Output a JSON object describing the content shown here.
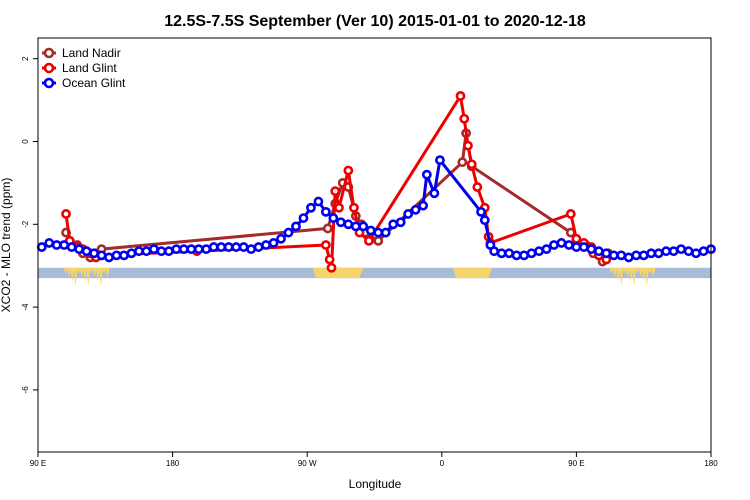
{
  "chart_data": {
    "type": "line",
    "title": "12.5S-7.5S September (Ver 10)   2015-01-01 to 2020-12-18",
    "xlabel": "Longitude",
    "ylabel": "XCO2 - MLO trend (ppm)",
    "xlim": [
      90,
      450
    ],
    "ylim": [
      -7.5,
      2.5
    ],
    "x_ticks": [
      {
        "value": 90,
        "label": "90 E"
      },
      {
        "value": 162,
        "label": "180"
      },
      {
        "value": 234,
        "label": "90 W"
      },
      {
        "value": 306,
        "label": "0"
      },
      {
        "value": 378,
        "label": "90 E"
      },
      {
        "value": 450,
        "label": "180"
      }
    ],
    "y_ticks": [
      2,
      0,
      -2,
      -4,
      -6
    ],
    "grid": false,
    "legend_position": "top-left",
    "land_band": {
      "y_range": [
        -3.3,
        -3.05
      ],
      "base_color": "#a8bcd8",
      "land_color": "#f5d56b",
      "land_segments": [
        [
          237,
          264
        ],
        [
          312,
          333
        ]
      ],
      "coast_fringe_segments": [
        [
          104,
          128
        ],
        [
          396,
          420
        ]
      ]
    },
    "series": [
      {
        "name": "Land Nadir",
        "color": "#a52a2a",
        "points": [
          [
            105,
            -2.2
          ],
          [
            107,
            -2.4
          ],
          [
            111,
            -2.5
          ],
          [
            114,
            -2.7
          ],
          [
            118,
            -2.8
          ],
          [
            121,
            -2.7
          ],
          [
            124,
            -2.6
          ],
          [
            245,
            -2.1
          ],
          [
            249,
            -1.5
          ],
          [
            253,
            -1.0
          ],
          [
            256,
            -1.1
          ],
          [
            260,
            -1.8
          ],
          [
            263,
            -2.0
          ],
          [
            265,
            -2.2
          ],
          [
            272,
            -2.4
          ],
          [
            317,
            -0.5
          ],
          [
            319,
            0.2
          ],
          [
            322,
            -0.6
          ],
          [
            375,
            -2.2
          ],
          [
            378,
            -2.4
          ],
          [
            383,
            -2.5
          ],
          [
            387,
            -2.7
          ],
          [
            392,
            -2.9
          ],
          [
            395,
            -2.7
          ]
        ]
      },
      {
        "name": "Land Glint",
        "color": "#ee0000",
        "points": [
          [
            105,
            -1.75
          ],
          [
            107,
            -2.4
          ],
          [
            111,
            -2.55
          ],
          [
            114,
            -2.6
          ],
          [
            118,
            -2.7
          ],
          [
            121,
            -2.8
          ],
          [
            124,
            -2.75
          ],
          [
            175,
            -2.65
          ],
          [
            244,
            -2.5
          ],
          [
            246,
            -2.85
          ],
          [
            247,
            -3.05
          ],
          [
            249,
            -1.2
          ],
          [
            251,
            -1.6
          ],
          [
            256,
            -0.7
          ],
          [
            259,
            -1.6
          ],
          [
            262,
            -2.2
          ],
          [
            267,
            -2.4
          ],
          [
            316,
            1.1
          ],
          [
            318,
            0.55
          ],
          [
            320,
            -0.1
          ],
          [
            322,
            -0.55
          ],
          [
            325,
            -1.1
          ],
          [
            329,
            -1.6
          ],
          [
            331,
            -2.3
          ],
          [
            332,
            -2.45
          ],
          [
            375,
            -1.75
          ],
          [
            378,
            -2.35
          ],
          [
            382,
            -2.45
          ],
          [
            386,
            -2.55
          ],
          [
            390,
            -2.75
          ],
          [
            394,
            -2.85
          ]
        ]
      },
      {
        "name": "Ocean Glint",
        "color": "#0000ee",
        "points": [
          [
            92,
            -2.55
          ],
          [
            96,
            -2.45
          ],
          [
            100,
            -2.5
          ],
          [
            104,
            -2.5
          ],
          [
            108,
            -2.55
          ],
          [
            112,
            -2.6
          ],
          [
            116,
            -2.65
          ],
          [
            120,
            -2.7
          ],
          [
            124,
            -2.75
          ],
          [
            128,
            -2.8
          ],
          [
            132,
            -2.75
          ],
          [
            136,
            -2.75
          ],
          [
            140,
            -2.7
          ],
          [
            144,
            -2.65
          ],
          [
            148,
            -2.65
          ],
          [
            152,
            -2.6
          ],
          [
            156,
            -2.65
          ],
          [
            160,
            -2.65
          ],
          [
            164,
            -2.6
          ],
          [
            168,
            -2.6
          ],
          [
            172,
            -2.6
          ],
          [
            176,
            -2.6
          ],
          [
            180,
            -2.6
          ],
          [
            184,
            -2.55
          ],
          [
            188,
            -2.55
          ],
          [
            192,
            -2.55
          ],
          [
            196,
            -2.55
          ],
          [
            200,
            -2.55
          ],
          [
            204,
            -2.6
          ],
          [
            208,
            -2.55
          ],
          [
            212,
            -2.5
          ],
          [
            216,
            -2.45
          ],
          [
            220,
            -2.35
          ],
          [
            224,
            -2.2
          ],
          [
            228,
            -2.05
          ],
          [
            232,
            -1.85
          ],
          [
            236,
            -1.6
          ],
          [
            240,
            -1.45
          ],
          [
            244,
            -1.7
          ],
          [
            248,
            -1.85
          ],
          [
            252,
            -1.95
          ],
          [
            256,
            -2.0
          ],
          [
            260,
            -2.05
          ],
          [
            264,
            -2.05
          ],
          [
            268,
            -2.15
          ],
          [
            272,
            -2.2
          ],
          [
            276,
            -2.2
          ],
          [
            280,
            -2.0
          ],
          [
            284,
            -1.95
          ],
          [
            288,
            -1.75
          ],
          [
            292,
            -1.65
          ],
          [
            296,
            -1.55
          ],
          [
            298,
            -0.8
          ],
          [
            302,
            -1.25
          ],
          [
            305,
            -0.45
          ],
          [
            327,
            -1.7
          ],
          [
            329,
            -1.9
          ],
          [
            332,
            -2.5
          ],
          [
            334,
            -2.65
          ],
          [
            338,
            -2.7
          ],
          [
            342,
            -2.7
          ],
          [
            346,
            -2.75
          ],
          [
            350,
            -2.75
          ],
          [
            354,
            -2.7
          ],
          [
            358,
            -2.65
          ],
          [
            362,
            -2.6
          ],
          [
            366,
            -2.5
          ],
          [
            370,
            -2.45
          ],
          [
            374,
            -2.5
          ],
          [
            378,
            -2.55
          ],
          [
            382,
            -2.55
          ],
          [
            386,
            -2.6
          ],
          [
            390,
            -2.65
          ],
          [
            394,
            -2.7
          ],
          [
            398,
            -2.75
          ],
          [
            402,
            -2.75
          ],
          [
            406,
            -2.8
          ],
          [
            410,
            -2.75
          ],
          [
            414,
            -2.75
          ],
          [
            418,
            -2.7
          ],
          [
            422,
            -2.7
          ],
          [
            426,
            -2.65
          ],
          [
            430,
            -2.65
          ],
          [
            434,
            -2.6
          ],
          [
            438,
            -2.65
          ],
          [
            442,
            -2.7
          ],
          [
            446,
            -2.65
          ],
          [
            450,
            -2.6
          ]
        ]
      }
    ]
  }
}
